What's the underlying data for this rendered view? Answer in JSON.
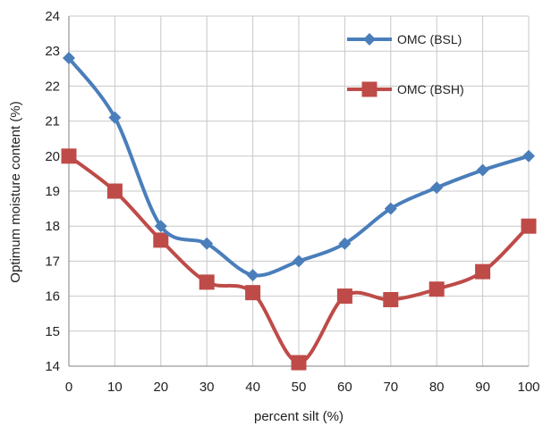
{
  "chart_data": {
    "type": "line",
    "xlabel": "percent silt (%)",
    "ylabel": "Optimum moisture content (%)",
    "xlim": [
      0,
      100
    ],
    "ylim": [
      14,
      24
    ],
    "x_ticks": [
      0,
      10,
      20,
      30,
      40,
      50,
      60,
      70,
      80,
      90,
      100
    ],
    "y_ticks": [
      14,
      15,
      16,
      17,
      18,
      19,
      20,
      21,
      22,
      23,
      24
    ],
    "grid": true,
    "legend_position": "top-right",
    "x": [
      0,
      10,
      20,
      30,
      40,
      50,
      60,
      70,
      80,
      90,
      100
    ],
    "series": [
      {
        "name": "OMC (BSL)",
        "color": "#4a7ebb",
        "marker": "diamond",
        "smooth": true,
        "values": [
          22.8,
          21.1,
          18.0,
          17.5,
          16.6,
          17.0,
          17.5,
          18.5,
          19.1,
          19.6,
          20.0
        ]
      },
      {
        "name": "OMC (BSH)",
        "color": "#be4b48",
        "marker": "square",
        "smooth": true,
        "values": [
          20.0,
          19.0,
          17.6,
          16.4,
          16.1,
          14.1,
          16.0,
          15.9,
          16.2,
          16.7,
          18.0
        ]
      }
    ]
  }
}
